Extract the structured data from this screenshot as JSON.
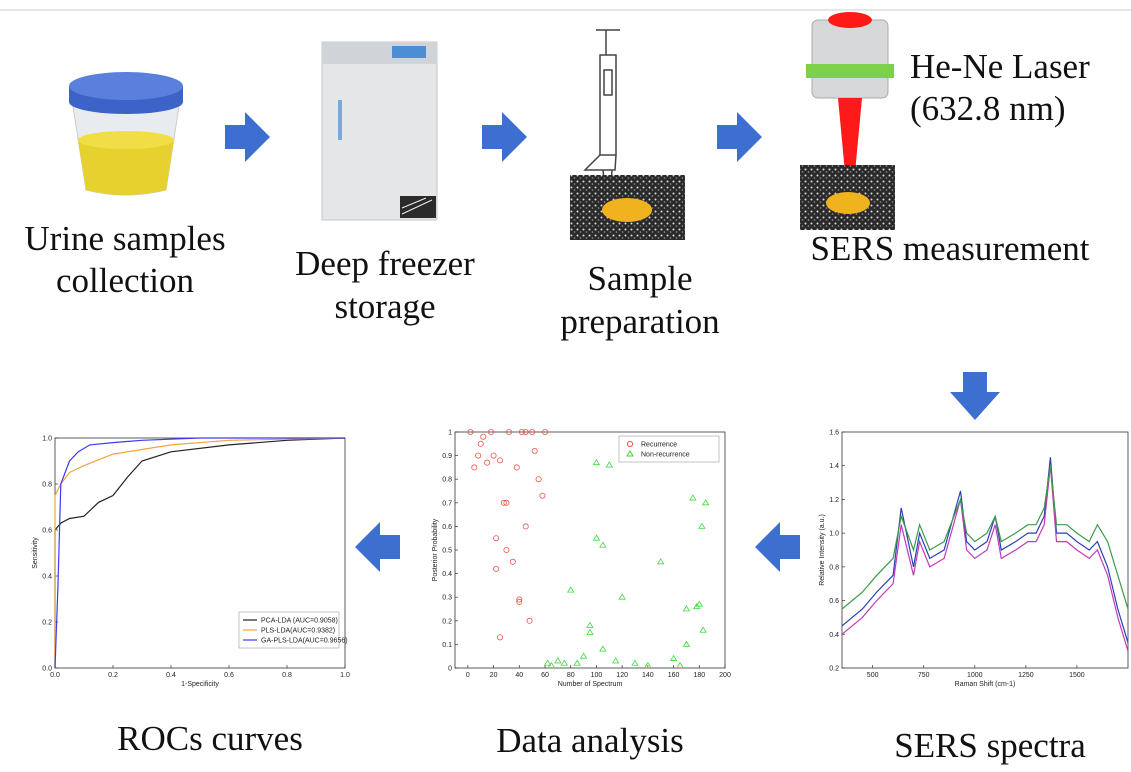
{
  "steps": [
    {
      "label": [
        "Urine samples",
        "collection"
      ]
    },
    {
      "label": [
        "Deep freezer",
        "storage"
      ]
    },
    {
      "label": [
        "Sample",
        "preparation"
      ]
    },
    {
      "label": [
        "SERS measurement"
      ]
    },
    {
      "label": [
        "SERS spectra"
      ]
    },
    {
      "label": [
        "Data analysis"
      ]
    },
    {
      "label": [
        "ROCs curves"
      ]
    }
  ],
  "laser": {
    "name": "He-Ne Laser",
    "wavelength": "(632.8 nm)"
  },
  "panels": {
    "roc": {
      "type": "line",
      "xlabel": "1-Specificity",
      "ylabel": "Sensitivity",
      "xlim": [
        0,
        1
      ],
      "ylim": [
        0,
        1
      ],
      "xticks": [
        {
          "value": 0,
          "label": "0.0"
        },
        {
          "value": 0.2,
          "label": "0.2"
        },
        {
          "value": 0.4,
          "label": "0.4"
        },
        {
          "value": 0.6,
          "label": "0.6"
        },
        {
          "value": 0.8,
          "label": "0.8"
        },
        {
          "value": 1,
          "label": "1.0"
        }
      ],
      "yticks": [
        {
          "value": 0,
          "label": "0.0"
        },
        {
          "value": 0.2,
          "label": "0.2"
        },
        {
          "value": 0.4,
          "label": "0.4"
        },
        {
          "value": 0.6,
          "label": "0.6"
        },
        {
          "value": 0.8,
          "label": "0.8"
        },
        {
          "value": 1,
          "label": "1.0"
        }
      ],
      "legend": "lower right",
      "series": [
        {
          "name": "PCA-LDA (AUC=0.9058)",
          "color": "#222222",
          "x": [
            0,
            0,
            0.02,
            0.05,
            0.1,
            0.15,
            0.2,
            0.25,
            0.3,
            0.4,
            0.6,
            0.8,
            1
          ],
          "values": [
            0,
            0.6,
            0.63,
            0.65,
            0.66,
            0.72,
            0.75,
            0.83,
            0.9,
            0.94,
            0.97,
            0.99,
            1
          ]
        },
        {
          "name": "PLS-LDA(AUC=0.9382)",
          "color": "#f4a340",
          "x": [
            0,
            0,
            0.02,
            0.05,
            0.1,
            0.2,
            0.3,
            0.4,
            0.6,
            1
          ],
          "values": [
            0,
            0.75,
            0.8,
            0.85,
            0.88,
            0.93,
            0.95,
            0.97,
            0.99,
            1
          ]
        },
        {
          "name": "GA-PLS-LDA(AUC=0.9656)",
          "color": "#3b3bf0",
          "x": [
            0,
            0.01,
            0.02,
            0.05,
            0.08,
            0.12,
            0.2,
            0.3,
            0.5,
            1
          ],
          "values": [
            0,
            0.35,
            0.8,
            0.9,
            0.94,
            0.97,
            0.98,
            0.99,
            1,
            1
          ]
        }
      ]
    },
    "scatter": {
      "type": "scatter",
      "xlabel": "Number of Spectrum",
      "ylabel": "Posterior Probability",
      "xlim": [
        -10,
        200
      ],
      "ylim": [
        0,
        1
      ],
      "xticks": [
        0,
        20,
        40,
        60,
        80,
        100,
        120,
        140,
        160,
        180,
        200
      ],
      "yticks": [
        0,
        0.1,
        0.2,
        0.3,
        0.4,
        0.5,
        0.6,
        0.7,
        0.8,
        0.9,
        1
      ],
      "legend": "upper right",
      "series": [
        {
          "name": "Recurrence",
          "color": "#e8554e",
          "marker": "circle",
          "x": [
            2,
            5,
            8,
            10,
            12,
            15,
            18,
            20,
            22,
            25,
            28,
            30,
            32,
            35,
            38,
            40,
            42,
            45,
            48,
            50,
            52,
            55,
            58,
            60,
            22,
            25,
            30,
            40,
            45
          ],
          "values": [
            1,
            0.85,
            0.9,
            0.95,
            0.98,
            0.87,
            1,
            0.9,
            0.55,
            0.88,
            0.7,
            0.7,
            1,
            0.45,
            0.85,
            0.28,
            1,
            0.6,
            0.2,
            1,
            0.92,
            0.8,
            0.73,
            1,
            0.42,
            0.13,
            0.5,
            0.29,
            1
          ]
        },
        {
          "name": "Non-recurrence",
          "color": "#3ddc3d",
          "marker": "triangle",
          "x": [
            62,
            65,
            70,
            75,
            80,
            85,
            90,
            95,
            100,
            105,
            110,
            115,
            120,
            130,
            140,
            150,
            160,
            170,
            175,
            180,
            182,
            185,
            95,
            100,
            105,
            165,
            170,
            178,
            183
          ],
          "values": [
            0.02,
            0.01,
            0.03,
            0.02,
            0.33,
            0.02,
            0.05,
            0.15,
            0.55,
            0.52,
            0.86,
            0.03,
            0.3,
            0.02,
            0.01,
            0.45,
            0.04,
            0.25,
            0.72,
            0.27,
            0.6,
            0.7,
            0.18,
            0.87,
            0.08,
            0.01,
            0.1,
            0.26,
            0.16
          ]
        }
      ]
    },
    "spectra": {
      "type": "line",
      "xlabel": "Raman Shift (cm-1)",
      "ylabel": "Relative Intensity (a.u.)",
      "xlim": [
        350,
        1750
      ],
      "ylim": [
        0.2,
        1.6
      ],
      "xticks": [
        500,
        750,
        1000,
        1250,
        1500
      ],
      "yticks": [
        0.2,
        0.4,
        0.6,
        0.8,
        {
          "value": 1,
          "label": "1.0"
        },
        1.2,
        1.4,
        1.6
      ],
      "x": [
        350,
        450,
        520,
        600,
        640,
        700,
        730,
        780,
        850,
        930,
        960,
        1000,
        1060,
        1100,
        1130,
        1200,
        1260,
        1300,
        1340,
        1370,
        1400,
        1450,
        1500,
        1560,
        1600,
        1650,
        1700,
        1750
      ],
      "series": [
        {
          "color": "#2a3fb5",
          "values": [
            0.45,
            0.55,
            0.65,
            0.75,
            1.15,
            0.8,
            1.0,
            0.85,
            0.9,
            1.25,
            0.95,
            0.9,
            0.95,
            1.1,
            0.9,
            0.95,
            1.0,
            1.0,
            1.1,
            1.45,
            1.0,
            1.0,
            0.95,
            0.9,
            0.95,
            0.8,
            0.55,
            0.35
          ]
        },
        {
          "color": "#c23ab8",
          "values": [
            0.4,
            0.5,
            0.6,
            0.7,
            1.05,
            0.75,
            0.95,
            0.8,
            0.85,
            1.2,
            0.9,
            0.85,
            0.9,
            1.05,
            0.85,
            0.9,
            0.95,
            0.95,
            1.05,
            1.4,
            0.95,
            0.95,
            0.9,
            0.85,
            0.9,
            0.75,
            0.5,
            0.3
          ]
        },
        {
          "color": "#3a9a4a",
          "values": [
            0.55,
            0.65,
            0.75,
            0.85,
            1.1,
            0.9,
            1.05,
            0.9,
            0.95,
            1.2,
            1.0,
            0.95,
            1.0,
            1.1,
            0.95,
            1.0,
            1.05,
            1.05,
            1.15,
            1.4,
            1.05,
            1.05,
            1.0,
            0.95,
            1.05,
            0.95,
            0.75,
            0.55
          ]
        }
      ]
    }
  }
}
